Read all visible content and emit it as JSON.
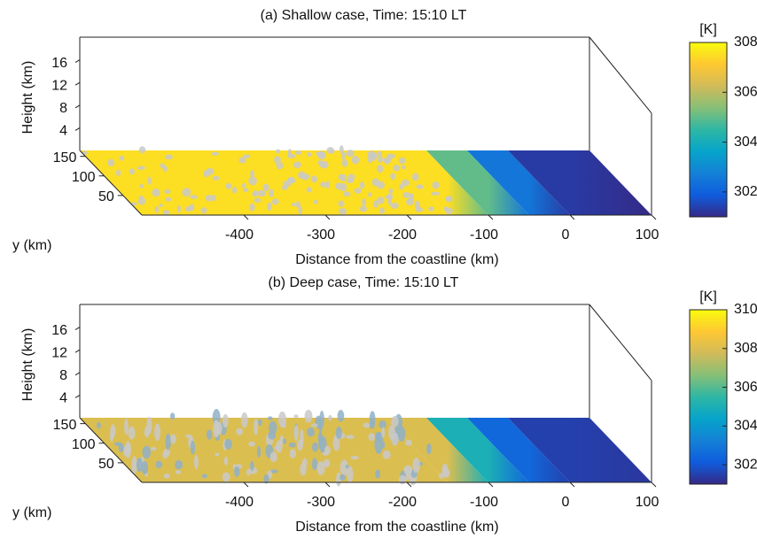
{
  "chart_data": [
    {
      "type": "surface3d",
      "title": "(a) Shallow case, Time: 15:10 LT",
      "x_label": "Distance from the coastline (km)",
      "y_label": "y (km)",
      "z_label": "Height (km)",
      "xlim": [
        -525,
        100
      ],
      "ylim": [
        0,
        165
      ],
      "zlim": [
        0,
        20
      ],
      "xticks": [
        -400,
        -300,
        -200,
        -100,
        0,
        100
      ],
      "yticks": [
        50,
        100,
        150
      ],
      "zticks": [
        4,
        8,
        12,
        16
      ],
      "surface": {
        "x": [
          -525,
          -150,
          -100,
          -50,
          0,
          100
        ],
        "values": [
          307.5,
          307.5,
          305,
          302.5,
          301.3,
          301
        ]
      },
      "colorbar": {
        "label": "[K]",
        "clim": [
          301,
          308
        ],
        "ticks": [
          302,
          304,
          306,
          308
        ],
        "colormap": [
          "#352a87",
          "#0f5cdd",
          "#1481d6",
          "#06a4ca",
          "#2eb7a4",
          "#87bf77",
          "#d1bb59",
          "#fec832",
          "#f9fb0e"
        ]
      }
    },
    {
      "type": "surface3d",
      "title": "(b) Deep case, Time: 15:10 LT",
      "x_label": "Distance from the coastline (km)",
      "y_label": "y (km)",
      "z_label": "Height (km)",
      "xlim": [
        -525,
        100
      ],
      "ylim": [
        0,
        165
      ],
      "zlim": [
        0,
        20
      ],
      "xticks": [
        -400,
        -300,
        -200,
        -100,
        0,
        100
      ],
      "yticks": [
        50,
        100,
        150
      ],
      "zticks": [
        4,
        8,
        12,
        16
      ],
      "surface": {
        "x": [
          -525,
          -150,
          -100,
          -50,
          0,
          100
        ],
        "values": [
          308,
          308,
          305,
          302.5,
          301.5,
          301.3
        ]
      },
      "colorbar": {
        "label": "[K]",
        "clim": [
          301,
          310
        ],
        "ticks": [
          302,
          304,
          306,
          308,
          310
        ],
        "colormap": [
          "#352a87",
          "#0f5cdd",
          "#1481d6",
          "#06a4ca",
          "#2eb7a4",
          "#87bf77",
          "#d1bb59",
          "#fec832",
          "#f9fb0e"
        ]
      }
    }
  ]
}
